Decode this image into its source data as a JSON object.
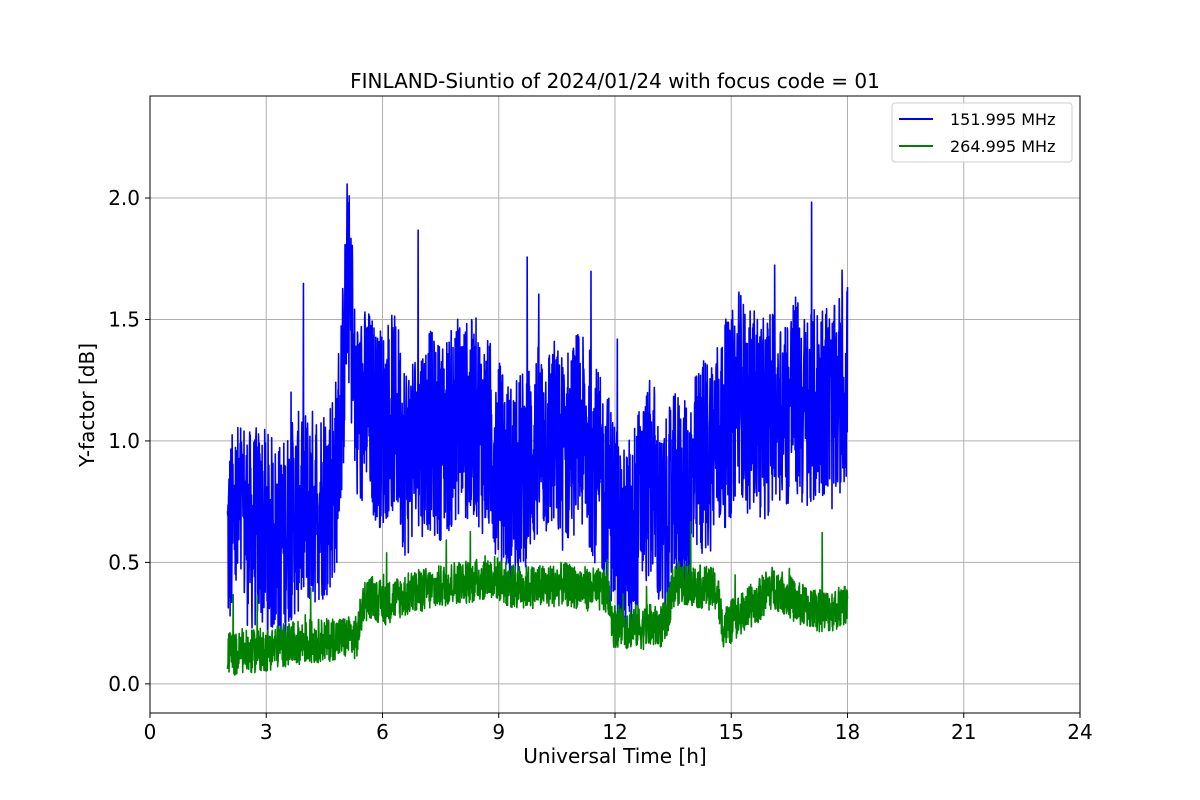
{
  "chart_data": {
    "type": "line",
    "title": "FINLAND-Siuntio of 2024/01/24 with focus code = 01",
    "xlabel": "Universal Time [h]",
    "ylabel": "Y-factor [dB]",
    "xlim": [
      0,
      24
    ],
    "ylim": [
      -0.12,
      2.42
    ],
    "xticks": [
      "0",
      "3",
      "6",
      "9",
      "12",
      "15",
      "18",
      "21",
      "24"
    ],
    "yticks": [
      "0.0",
      "0.5",
      "1.0",
      "1.5",
      "2.0"
    ],
    "grid": true,
    "legend_position": "top-right",
    "series": [
      {
        "name": "151.995 MHz",
        "color": "#0000ff",
        "x": [
          2.0,
          2.2,
          2.4,
          2.6,
          2.8,
          3.0,
          3.2,
          3.4,
          3.6,
          3.8,
          4.0,
          4.2,
          4.4,
          4.6,
          4.8,
          5.0,
          5.1,
          5.2,
          5.3,
          5.4,
          5.6,
          5.8,
          6.0,
          6.2,
          6.4,
          6.6,
          6.8,
          7.0,
          7.2,
          7.4,
          7.6,
          7.8,
          8.0,
          8.2,
          8.4,
          8.6,
          8.8,
          9.0,
          9.2,
          9.4,
          9.6,
          9.8,
          10.0,
          10.2,
          10.4,
          10.6,
          10.8,
          11.0,
          11.2,
          11.4,
          11.6,
          11.8,
          12.0,
          12.2,
          12.4,
          12.6,
          12.8,
          13.0,
          13.2,
          13.4,
          13.6,
          13.8,
          14.0,
          14.2,
          14.4,
          14.6,
          14.8,
          15.0,
          15.2,
          15.4,
          15.6,
          15.8,
          16.0,
          16.2,
          16.4,
          16.6,
          16.8,
          17.0,
          17.2,
          17.4,
          17.6,
          17.8,
          18.0
        ],
        "y": [
          0.58,
          0.66,
          0.7,
          0.62,
          0.65,
          0.63,
          0.6,
          0.58,
          0.66,
          0.7,
          0.72,
          0.73,
          0.75,
          0.78,
          0.86,
          1.3,
          1.72,
          1.45,
          1.12,
          1.1,
          1.15,
          1.08,
          1.05,
          1.12,
          1.08,
          0.92,
          0.98,
          1.02,
          1.05,
          1.0,
          1.02,
          1.05,
          1.12,
          1.08,
          1.1,
          1.02,
          1.0,
          0.92,
          0.85,
          0.82,
          0.88,
          0.92,
          0.98,
          1.0,
          1.02,
          0.95,
          0.98,
          1.05,
          1.0,
          0.96,
          0.85,
          0.8,
          0.7,
          0.55,
          0.62,
          0.72,
          0.82,
          0.85,
          0.6,
          0.72,
          0.8,
          0.75,
          0.82,
          0.92,
          0.95,
          1.0,
          1.05,
          1.1,
          1.25,
          1.1,
          1.15,
          1.08,
          1.12,
          1.18,
          1.12,
          1.2,
          1.15,
          1.08,
          1.15,
          1.2,
          1.12,
          1.18,
          1.25
        ]
      },
      {
        "name": "264.995 MHz",
        "color": "#008000",
        "x": [
          2.0,
          2.2,
          2.4,
          2.6,
          2.8,
          3.0,
          3.2,
          3.4,
          3.6,
          3.8,
          4.0,
          4.2,
          4.4,
          4.6,
          4.8,
          5.0,
          5.2,
          5.35,
          5.5,
          5.7,
          5.9,
          6.1,
          6.3,
          6.5,
          6.7,
          6.9,
          7.1,
          7.3,
          7.5,
          7.7,
          7.9,
          8.1,
          8.3,
          8.5,
          8.7,
          8.9,
          9.1,
          9.3,
          9.5,
          9.7,
          9.9,
          10.1,
          10.3,
          10.5,
          10.7,
          10.9,
          11.1,
          11.3,
          11.5,
          11.7,
          11.85,
          11.95,
          12.1,
          12.3,
          12.5,
          12.7,
          12.9,
          13.1,
          13.3,
          13.5,
          13.7,
          13.9,
          14.1,
          14.3,
          14.5,
          14.65,
          14.75,
          14.9,
          15.1,
          15.3,
          15.5,
          15.7,
          15.9,
          16.1,
          16.3,
          16.5,
          16.7,
          16.9,
          17.1,
          17.3,
          17.5,
          17.7,
          17.9,
          18.0
        ],
        "y": [
          0.13,
          0.12,
          0.13,
          0.13,
          0.14,
          0.14,
          0.15,
          0.16,
          0.16,
          0.17,
          0.17,
          0.17,
          0.18,
          0.18,
          0.19,
          0.19,
          0.19,
          0.19,
          0.34,
          0.36,
          0.34,
          0.33,
          0.35,
          0.36,
          0.37,
          0.38,
          0.39,
          0.39,
          0.4,
          0.41,
          0.42,
          0.42,
          0.42,
          0.43,
          0.44,
          0.44,
          0.42,
          0.4,
          0.4,
          0.4,
          0.4,
          0.4,
          0.4,
          0.41,
          0.41,
          0.4,
          0.4,
          0.39,
          0.39,
          0.38,
          0.37,
          0.24,
          0.24,
          0.23,
          0.24,
          0.23,
          0.24,
          0.23,
          0.25,
          0.4,
          0.42,
          0.41,
          0.4,
          0.4,
          0.39,
          0.38,
          0.24,
          0.24,
          0.27,
          0.29,
          0.32,
          0.34,
          0.38,
          0.4,
          0.38,
          0.36,
          0.33,
          0.32,
          0.31,
          0.3,
          0.3,
          0.31,
          0.32,
          0.33
        ]
      }
    ]
  }
}
